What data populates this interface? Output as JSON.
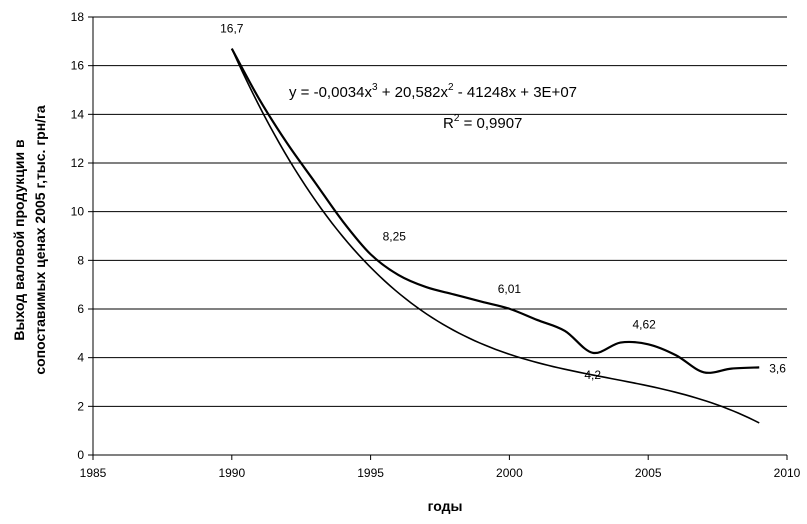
{
  "chart_data": {
    "type": "line",
    "title": "",
    "xlabel": "годы",
    "ylabel_line1": "Выход валовой продукции в",
    "ylabel_line2": "сопоставимых ценах 2005 г,тыс. грн/га",
    "xlim": [
      1985,
      2010
    ],
    "ylim": [
      0,
      18
    ],
    "xticks": [
      1985,
      1990,
      1995,
      2000,
      2005,
      2010
    ],
    "yticks": [
      0,
      2,
      4,
      6,
      8,
      10,
      12,
      14,
      16,
      18
    ],
    "grid": "horizontal",
    "series": [
      {
        "kind": "data",
        "x": [
          1990,
          1991,
          1992,
          1993,
          1994,
          1995,
          1996,
          1997,
          1998,
          1999,
          2000,
          2001,
          2002,
          2003,
          2004,
          2005,
          2006,
          2007,
          2008,
          2009
        ],
        "y": [
          16.7,
          14.6,
          12.8,
          11.2,
          9.6,
          8.25,
          7.4,
          6.9,
          6.6,
          6.3,
          6.01,
          5.55,
          5.1,
          4.2,
          4.62,
          4.55,
          4.1,
          3.4,
          3.55,
          3.6
        ],
        "color": "#000000"
      },
      {
        "kind": "trend",
        "equation": "y = -0,0034x^3 + 20,582x^2 - 41248x + 3E+07",
        "r2": "0,9907",
        "coeffs_cubic_in_t": [
          16.7,
          -2.55,
          0.1714,
          -0.0042
        ],
        "t_origin": 1990,
        "x_range": [
          1990,
          2009
        ],
        "color": "#000000"
      }
    ],
    "data_labels": [
      {
        "x": 1990,
        "y": 16.7,
        "text": "16,7",
        "pos": "above"
      },
      {
        "x": 1995,
        "y": 8.25,
        "text": "8,25",
        "pos": "above-right"
      },
      {
        "x": 2000,
        "y": 6.01,
        "text": "6,01",
        "pos": "above"
      },
      {
        "x": 2003,
        "y": 4.2,
        "text": "4,2",
        "pos": "below"
      },
      {
        "x": 2004,
        "y": 4.62,
        "text": "4,62",
        "pos": "above-right"
      },
      {
        "x": 2009,
        "y": 3.6,
        "text": "3,6",
        "pos": "right"
      }
    ],
    "equation_parts": {
      "lhs": "y = -0,0034x",
      "p1": "3",
      "mid1": " + 20,582x",
      "p2": "2",
      "rest": " - 41248x + 3E+07",
      "r_prefix": "R",
      "r_sup": "2",
      "r_rest": " = 0,9907"
    }
  }
}
